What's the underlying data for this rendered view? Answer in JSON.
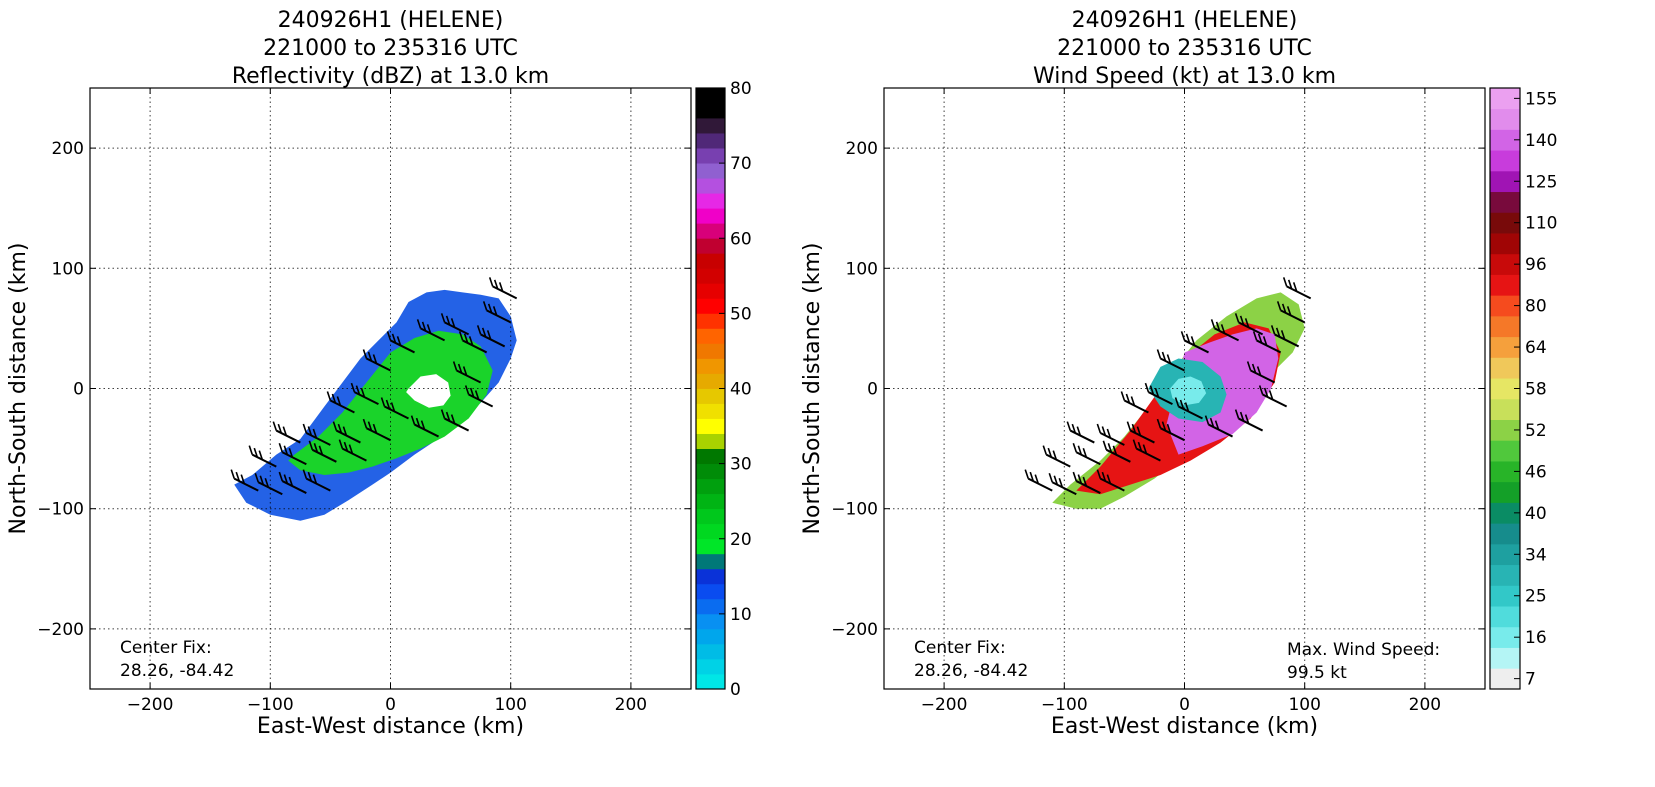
{
  "chart_data": [
    {
      "type": "heatmap",
      "title_lines": [
        "240926H1 (HELENE)",
        "221000 to 235316 UTC",
        "Reflectivity (dBZ) at 13.0 km"
      ],
      "xlabel": "East-West distance (km)",
      "ylabel": "North-South distance (km)",
      "xlim": [
        -250,
        250
      ],
      "ylim": [
        -250,
        250
      ],
      "xticks": [
        -200,
        -100,
        0,
        100,
        200
      ],
      "yticks": [
        -200,
        -100,
        0,
        100,
        200
      ],
      "xtick_labels": [
        "−200",
        "−100",
        "0",
        "100",
        "200"
      ],
      "ytick_labels": [
        "−200",
        "−100",
        "0",
        "100",
        "200"
      ],
      "grid": true,
      "annotations": [
        {
          "text": "Center Fix:",
          "position": "bottom-left"
        },
        {
          "text": "28.26, -84.42",
          "position": "bottom-left"
        }
      ],
      "colorbar": {
        "min": 0,
        "max": 80,
        "step": 2.5,
        "tick_values": [
          0,
          10,
          20,
          30,
          40,
          50,
          60,
          70,
          80
        ],
        "tick_labels": [
          "0",
          "10",
          "20",
          "30",
          "40",
          "50",
          "60",
          "70",
          "80"
        ],
        "colors": [
          "#00e6e6",
          "#00d2e6",
          "#00bce6",
          "#00a6ec",
          "#0890f2",
          "#0a6cf0",
          "#0a4cf0",
          "#0a32d8",
          "#007878",
          "#00e628",
          "#00d820",
          "#00c81c",
          "#00b414",
          "#00a00e",
          "#008c08",
          "#007800",
          "#a8d200",
          "#ffff00",
          "#f0e000",
          "#e6c800",
          "#e6aa00",
          "#f09600",
          "#f07800",
          "#ff6400",
          "#ff3200",
          "#ff0000",
          "#e60000",
          "#d20000",
          "#c80000",
          "#c00030",
          "#d8007a",
          "#f000c8",
          "#e628e6",
          "#b450e0",
          "#9060d0",
          "#7840b0",
          "#502878",
          "#301838",
          "#000000",
          "#000000"
        ]
      },
      "echo_regions": [
        {
          "level": "blue",
          "color": "#2462e6",
          "x": [
            -130,
            -115,
            -95,
            -75,
            -55,
            -40,
            -25,
            -10,
            5,
            15,
            30,
            45,
            60,
            75,
            90,
            100,
            105,
            100,
            90,
            75,
            55,
            35,
            20,
            0,
            -15,
            -35,
            -55,
            -75,
            -100,
            -120,
            -130
          ],
          "y": [
            -80,
            -72,
            -55,
            -42,
            -15,
            5,
            25,
            40,
            55,
            72,
            80,
            82,
            80,
            78,
            75,
            60,
            40,
            25,
            5,
            -12,
            -30,
            -45,
            -55,
            -70,
            -80,
            -93,
            -105,
            -110,
            -105,
            -95,
            -80
          ]
        },
        {
          "level": "green",
          "color": "#1ad32a",
          "x": [
            -80,
            -60,
            -40,
            -20,
            0,
            20,
            40,
            60,
            75,
            85,
            80,
            65,
            45,
            25,
            5,
            -15,
            -35,
            -55,
            -75,
            -85,
            -80
          ],
          "y": [
            -55,
            -40,
            -20,
            5,
            30,
            42,
            48,
            45,
            35,
            15,
            -5,
            -25,
            -40,
            -50,
            -58,
            -65,
            -70,
            -72,
            -68,
            -60,
            -55
          ]
        },
        {
          "level": "eye",
          "color": "#ffffff",
          "x": [
            15,
            25,
            38,
            48,
            50,
            44,
            32,
            20,
            13,
            15
          ],
          "y": [
            0,
            10,
            12,
            5,
            -6,
            -14,
            -16,
            -10,
            -3,
            0
          ]
        }
      ],
      "barbs": [
        {
          "x": -120,
          "y": -80
        },
        {
          "x": -100,
          "y": -83
        },
        {
          "x": -80,
          "y": -82
        },
        {
          "x": -60,
          "y": -80
        },
        {
          "x": -105,
          "y": -60
        },
        {
          "x": -80,
          "y": -58
        },
        {
          "x": -55,
          "y": -56
        },
        {
          "x": -30,
          "y": -55
        },
        {
          "x": -85,
          "y": -40
        },
        {
          "x": -60,
          "y": -42
        },
        {
          "x": -35,
          "y": -40
        },
        {
          "x": -10,
          "y": -38
        },
        {
          "x": -40,
          "y": -15
        },
        {
          "x": -20,
          "y": -8
        },
        {
          "x": 5,
          "y": -20
        },
        {
          "x": 30,
          "y": -35
        },
        {
          "x": 55,
          "y": -30
        },
        {
          "x": -10,
          "y": 20
        },
        {
          "x": 10,
          "y": 35
        },
        {
          "x": 35,
          "y": 45
        },
        {
          "x": 55,
          "y": 50
        },
        {
          "x": 70,
          "y": 35
        },
        {
          "x": 65,
          "y": 10
        },
        {
          "x": 75,
          "y": -10
        },
        {
          "x": 90,
          "y": 60
        },
        {
          "x": 95,
          "y": 80
        },
        {
          "x": 85,
          "y": 40
        }
      ]
    },
    {
      "type": "heatmap",
      "title_lines": [
        "240926H1 (HELENE)",
        "221000 to 235316 UTC",
        "Wind Speed (kt) at 13.0 km"
      ],
      "xlabel": "East-West distance (km)",
      "ylabel": "North-South distance (km)",
      "xlim": [
        -250,
        250
      ],
      "ylim": [
        -250,
        250
      ],
      "xticks": [
        -200,
        -100,
        0,
        100,
        200
      ],
      "yticks": [
        -200,
        -100,
        0,
        100,
        200
      ],
      "xtick_labels": [
        "−200",
        "−100",
        "0",
        "100",
        "200"
      ],
      "ytick_labels": [
        "−200",
        "−100",
        "0",
        "100",
        "200"
      ],
      "grid": true,
      "annotations": [
        {
          "text": "Center Fix:",
          "position": "bottom-left"
        },
        {
          "text": "28.26, -84.42",
          "position": "bottom-left"
        },
        {
          "text": "Max. Wind Speed:",
          "position": "bottom-right"
        },
        {
          "text": "99.5 kt",
          "position": "bottom-right"
        }
      ],
      "colorbar": {
        "band_count": 29,
        "tick_labels": [
          "7",
          "16",
          "25",
          "34",
          "40",
          "46",
          "52",
          "58",
          "64",
          "80",
          "96",
          "110",
          "125",
          "140",
          "155"
        ],
        "tick_band_edges": [
          1,
          3,
          5,
          7,
          9,
          11,
          13,
          15,
          17,
          19,
          21,
          23,
          25,
          27,
          29
        ],
        "colors": [
          "#eeeeee",
          "#b4f5f5",
          "#78ebeb",
          "#50dcdc",
          "#32c8c8",
          "#28b4b4",
          "#1ea0a0",
          "#168c8c",
          "#0a8c64",
          "#14a028",
          "#28b428",
          "#50c83c",
          "#8cd246",
          "#c8e05a",
          "#e6e664",
          "#f0c85a",
          "#f5a03c",
          "#f57828",
          "#f54b1e",
          "#e61414",
          "#c80a0a",
          "#a00505",
          "#780a0a",
          "#780a3c",
          "#a014b4",
          "#c83cdc",
          "#d264e6",
          "#e18cec",
          "#eba0f0"
        ]
      },
      "wind_regions": [
        {
          "level": "green",
          "color": "#8cd246",
          "x": [
            -110,
            -95,
            -70,
            -50,
            -30,
            -10,
            10,
            35,
            60,
            80,
            95,
            100,
            90,
            70,
            45,
            20,
            0,
            -25,
            -50,
            -70,
            -90,
            -110
          ],
          "y": [
            -95,
            -80,
            -60,
            -40,
            -15,
            15,
            40,
            60,
            75,
            80,
            70,
            50,
            30,
            10,
            -15,
            -35,
            -55,
            -75,
            -90,
            -100,
            -100,
            -95
          ]
        },
        {
          "level": "red",
          "color": "#e61414",
          "x": [
            -90,
            -70,
            -45,
            -20,
            0,
            25,
            50,
            70,
            80,
            75,
            55,
            30,
            5,
            -20,
            -45,
            -70,
            -90
          ],
          "y": [
            -85,
            -65,
            -35,
            0,
            25,
            45,
            55,
            50,
            30,
            5,
            -25,
            -45,
            -60,
            -72,
            -80,
            -88,
            -85
          ]
        },
        {
          "level": "purple",
          "color": "#d264e6",
          "x": [
            -5,
            15,
            40,
            60,
            72,
            78,
            75,
            60,
            40,
            20,
            0,
            -15,
            -5
          ],
          "y": [
            -55,
            -48,
            -38,
            -20,
            0,
            25,
            45,
            50,
            45,
            38,
            30,
            -30,
            -55
          ]
        },
        {
          "level": "teal",
          "color": "#28b4b4",
          "x": [
            -30,
            -20,
            -5,
            15,
            30,
            35,
            30,
            15,
            -5,
            -20,
            -30
          ],
          "y": [
            0,
            18,
            25,
            22,
            10,
            -5,
            -20,
            -28,
            -25,
            -15,
            0
          ]
        },
        {
          "level": "eye",
          "color": "#78ebeb",
          "x": [
            -12,
            -5,
            5,
            14,
            18,
            12,
            0,
            -10,
            -12
          ],
          "y": [
            0,
            8,
            10,
            6,
            -4,
            -12,
            -14,
            -8,
            0
          ]
        }
      ],
      "barbs": [
        {
          "x": -120,
          "y": -80
        },
        {
          "x": -100,
          "y": -83
        },
        {
          "x": -80,
          "y": -82
        },
        {
          "x": -60,
          "y": -80
        },
        {
          "x": -105,
          "y": -60
        },
        {
          "x": -80,
          "y": -58
        },
        {
          "x": -55,
          "y": -56
        },
        {
          "x": -30,
          "y": -55
        },
        {
          "x": -85,
          "y": -40
        },
        {
          "x": -60,
          "y": -42
        },
        {
          "x": -35,
          "y": -40
        },
        {
          "x": -10,
          "y": -38
        },
        {
          "x": -40,
          "y": -15
        },
        {
          "x": -20,
          "y": -8
        },
        {
          "x": 5,
          "y": -20
        },
        {
          "x": 30,
          "y": -35
        },
        {
          "x": 55,
          "y": -30
        },
        {
          "x": -10,
          "y": 20
        },
        {
          "x": 10,
          "y": 35
        },
        {
          "x": 35,
          "y": 45
        },
        {
          "x": 55,
          "y": 50
        },
        {
          "x": 70,
          "y": 35
        },
        {
          "x": 65,
          "y": 10
        },
        {
          "x": 75,
          "y": -10
        },
        {
          "x": 90,
          "y": 60
        },
        {
          "x": 95,
          "y": 80
        },
        {
          "x": 85,
          "y": 40
        }
      ]
    }
  ]
}
